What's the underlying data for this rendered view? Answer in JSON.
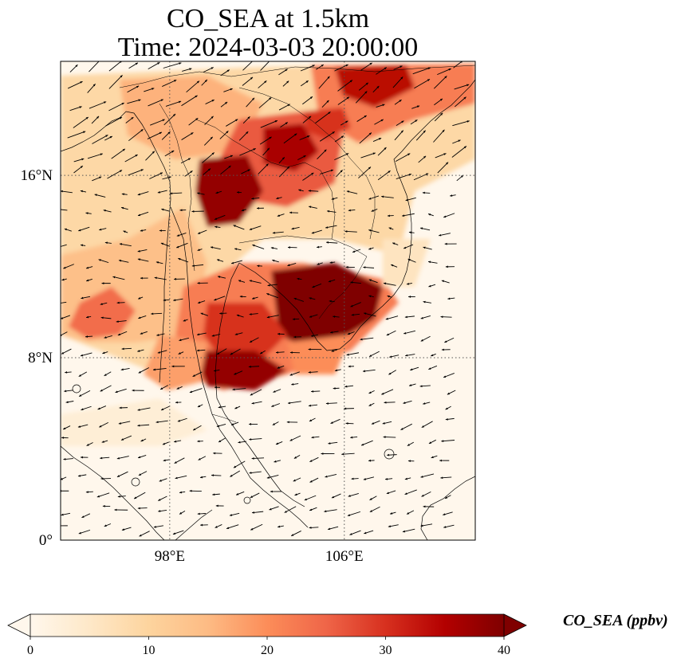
{
  "title": {
    "line1": "CO_SEA at 1.5km",
    "line2": "Time: 2024-03-03 20:00:00"
  },
  "map": {
    "type": "map",
    "variable": "CO_SEA",
    "level": "1.5km",
    "time": "2024-03-03 20:00:00",
    "lon_range": [
      93,
      112
    ],
    "lat_range": [
      0,
      21
    ],
    "gridlines": "dotted",
    "lon_ticks": [
      {
        "value": 98,
        "label": "98°E"
      },
      {
        "value": 106,
        "label": "106°E"
      }
    ],
    "lat_ticks": [
      {
        "value": 0,
        "label": "0°"
      },
      {
        "value": 8,
        "label": "8°N"
      },
      {
        "value": 16,
        "label": "16°N"
      }
    ],
    "colormap": "OrRd",
    "overlay": "wind vectors (arrows)",
    "coastlines": true,
    "country_borders": true
  },
  "colorbar": {
    "label": "CO_SEA (ppbv)",
    "min": 0,
    "max": 40,
    "extend": "both",
    "ticks": [
      0,
      10,
      20,
      30,
      40
    ],
    "tick_labels": [
      "0",
      "10",
      "20",
      "30",
      "40"
    ],
    "colors": [
      "#fff7ec",
      "#fee8c8",
      "#fdd49e",
      "#fdbb84",
      "#fc8d59",
      "#ef6548",
      "#d7301f",
      "#b30000",
      "#7f0000"
    ]
  }
}
